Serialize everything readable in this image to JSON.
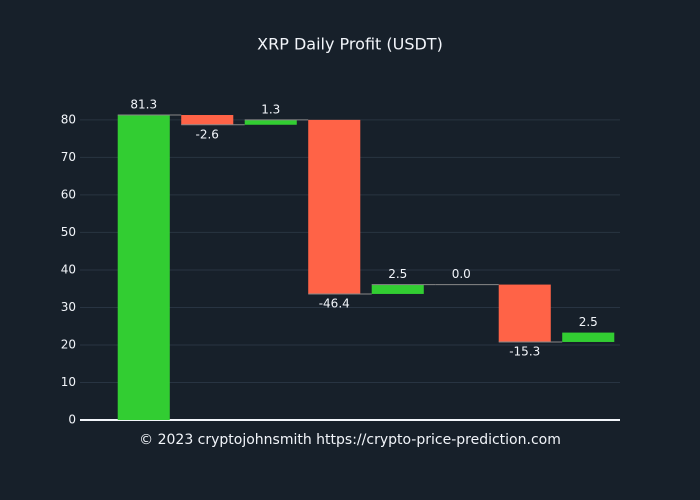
{
  "chart_data": {
    "type": "waterfall",
    "title": "XRP Daily Profit (USDT)",
    "values": [
      81.3,
      -2.6,
      1.3,
      -46.4,
      2.5,
      0.0,
      -15.3,
      2.5
    ],
    "value_labels": [
      "81.3",
      "-2.6",
      "1.3",
      "-46.4",
      "2.5",
      "0.0",
      "-15.3",
      "2.5"
    ],
    "increasing_color": "#32cd32",
    "decreasing_color": "#ff6347",
    "ylim": [
      0,
      85.3
    ],
    "yticks": [
      0,
      10,
      20,
      30,
      40,
      50,
      60,
      70,
      80
    ],
    "grid": true,
    "annotation": "© 2023 cryptojohnsmith  https://crypto-price-prediction.com"
  }
}
